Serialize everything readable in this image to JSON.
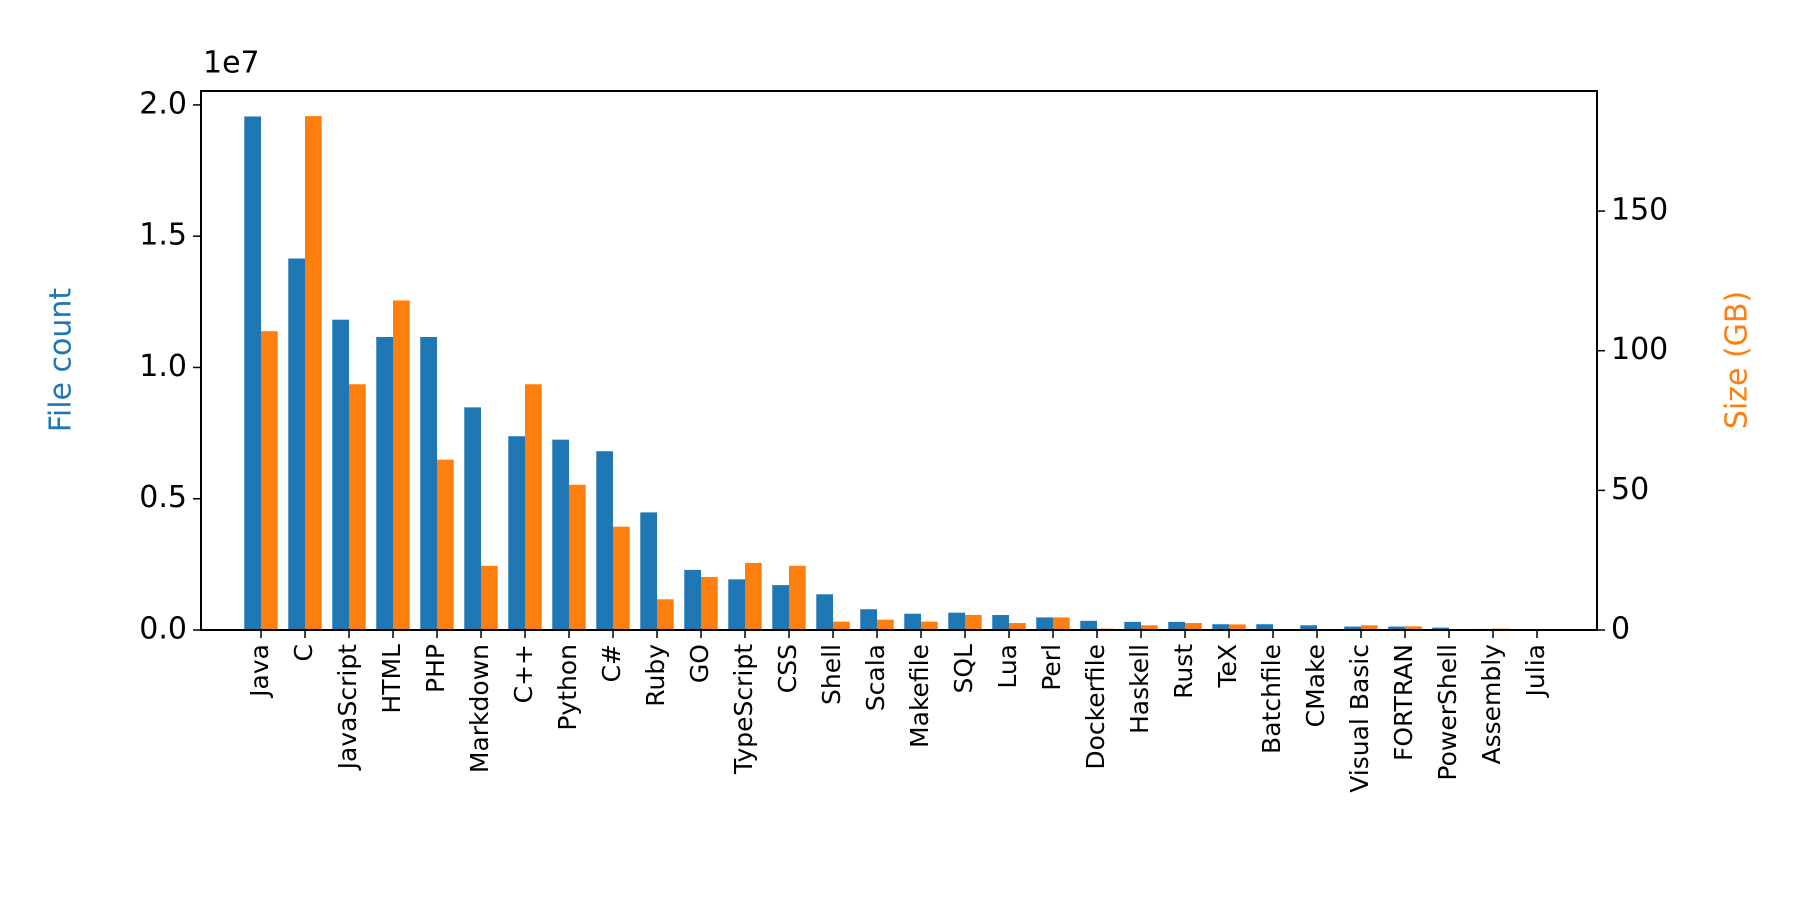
{
  "chart_data": {
    "type": "bar",
    "y_label": "File count",
    "y2_label": "Size (GB)",
    "y_offset_label": "1e7",
    "categories": [
      "Java",
      "C",
      "JavaScript",
      "HTML",
      "PHP",
      "Markdown",
      "C++",
      "Python",
      "C#",
      "Ruby",
      "GO",
      "TypeScript",
      "CSS",
      "Shell",
      "Scala",
      "Makefile",
      "SQL",
      "Lua",
      "Perl",
      "Dockerfile",
      "Haskell",
      "Rust",
      "TeX",
      "Batchfile",
      "CMake",
      "Visual Basic",
      "FORTRAN",
      "PowerShell",
      "Assembly",
      "Julia"
    ],
    "series": [
      {
        "name": "File count",
        "color": "#1f77b4",
        "axis": "y",
        "values": [
          19560000,
          14150000,
          11820000,
          11160000,
          11160000,
          8480000,
          7380000,
          7250000,
          6810000,
          4480000,
          2290000,
          1930000,
          1710000,
          1360000,
          790000,
          620000,
          660000,
          570000,
          480000,
          350000,
          310000,
          310000,
          220000,
          220000,
          180000,
          130000,
          130000,
          90000,
          40000,
          10000
        ]
      },
      {
        "name": "Size (GB)",
        "color": "#ff7f0e",
        "axis": "y2",
        "values": [
          107,
          184,
          88,
          118,
          61,
          23,
          88,
          52,
          37,
          11,
          19,
          24,
          23,
          3,
          3.7,
          3,
          5.4,
          2.5,
          4.5,
          0.5,
          1.7,
          2.5,
          2,
          0.2,
          0.2,
          1.7,
          1.3,
          0.2,
          0.5,
          0.1
        ]
      }
    ],
    "ylim": [
      0,
      20530000
    ],
    "yticks": [
      {
        "value": 0,
        "label": "0.0"
      },
      {
        "value": 5000000,
        "label": "0.5"
      },
      {
        "value": 10000000,
        "label": "1.0"
      },
      {
        "value": 15000000,
        "label": "1.5"
      },
      {
        "value": 20000000,
        "label": "2.0"
      }
    ],
    "y2lim": [
      0,
      193
    ],
    "y2ticks": [
      0,
      50,
      100,
      150
    ]
  }
}
